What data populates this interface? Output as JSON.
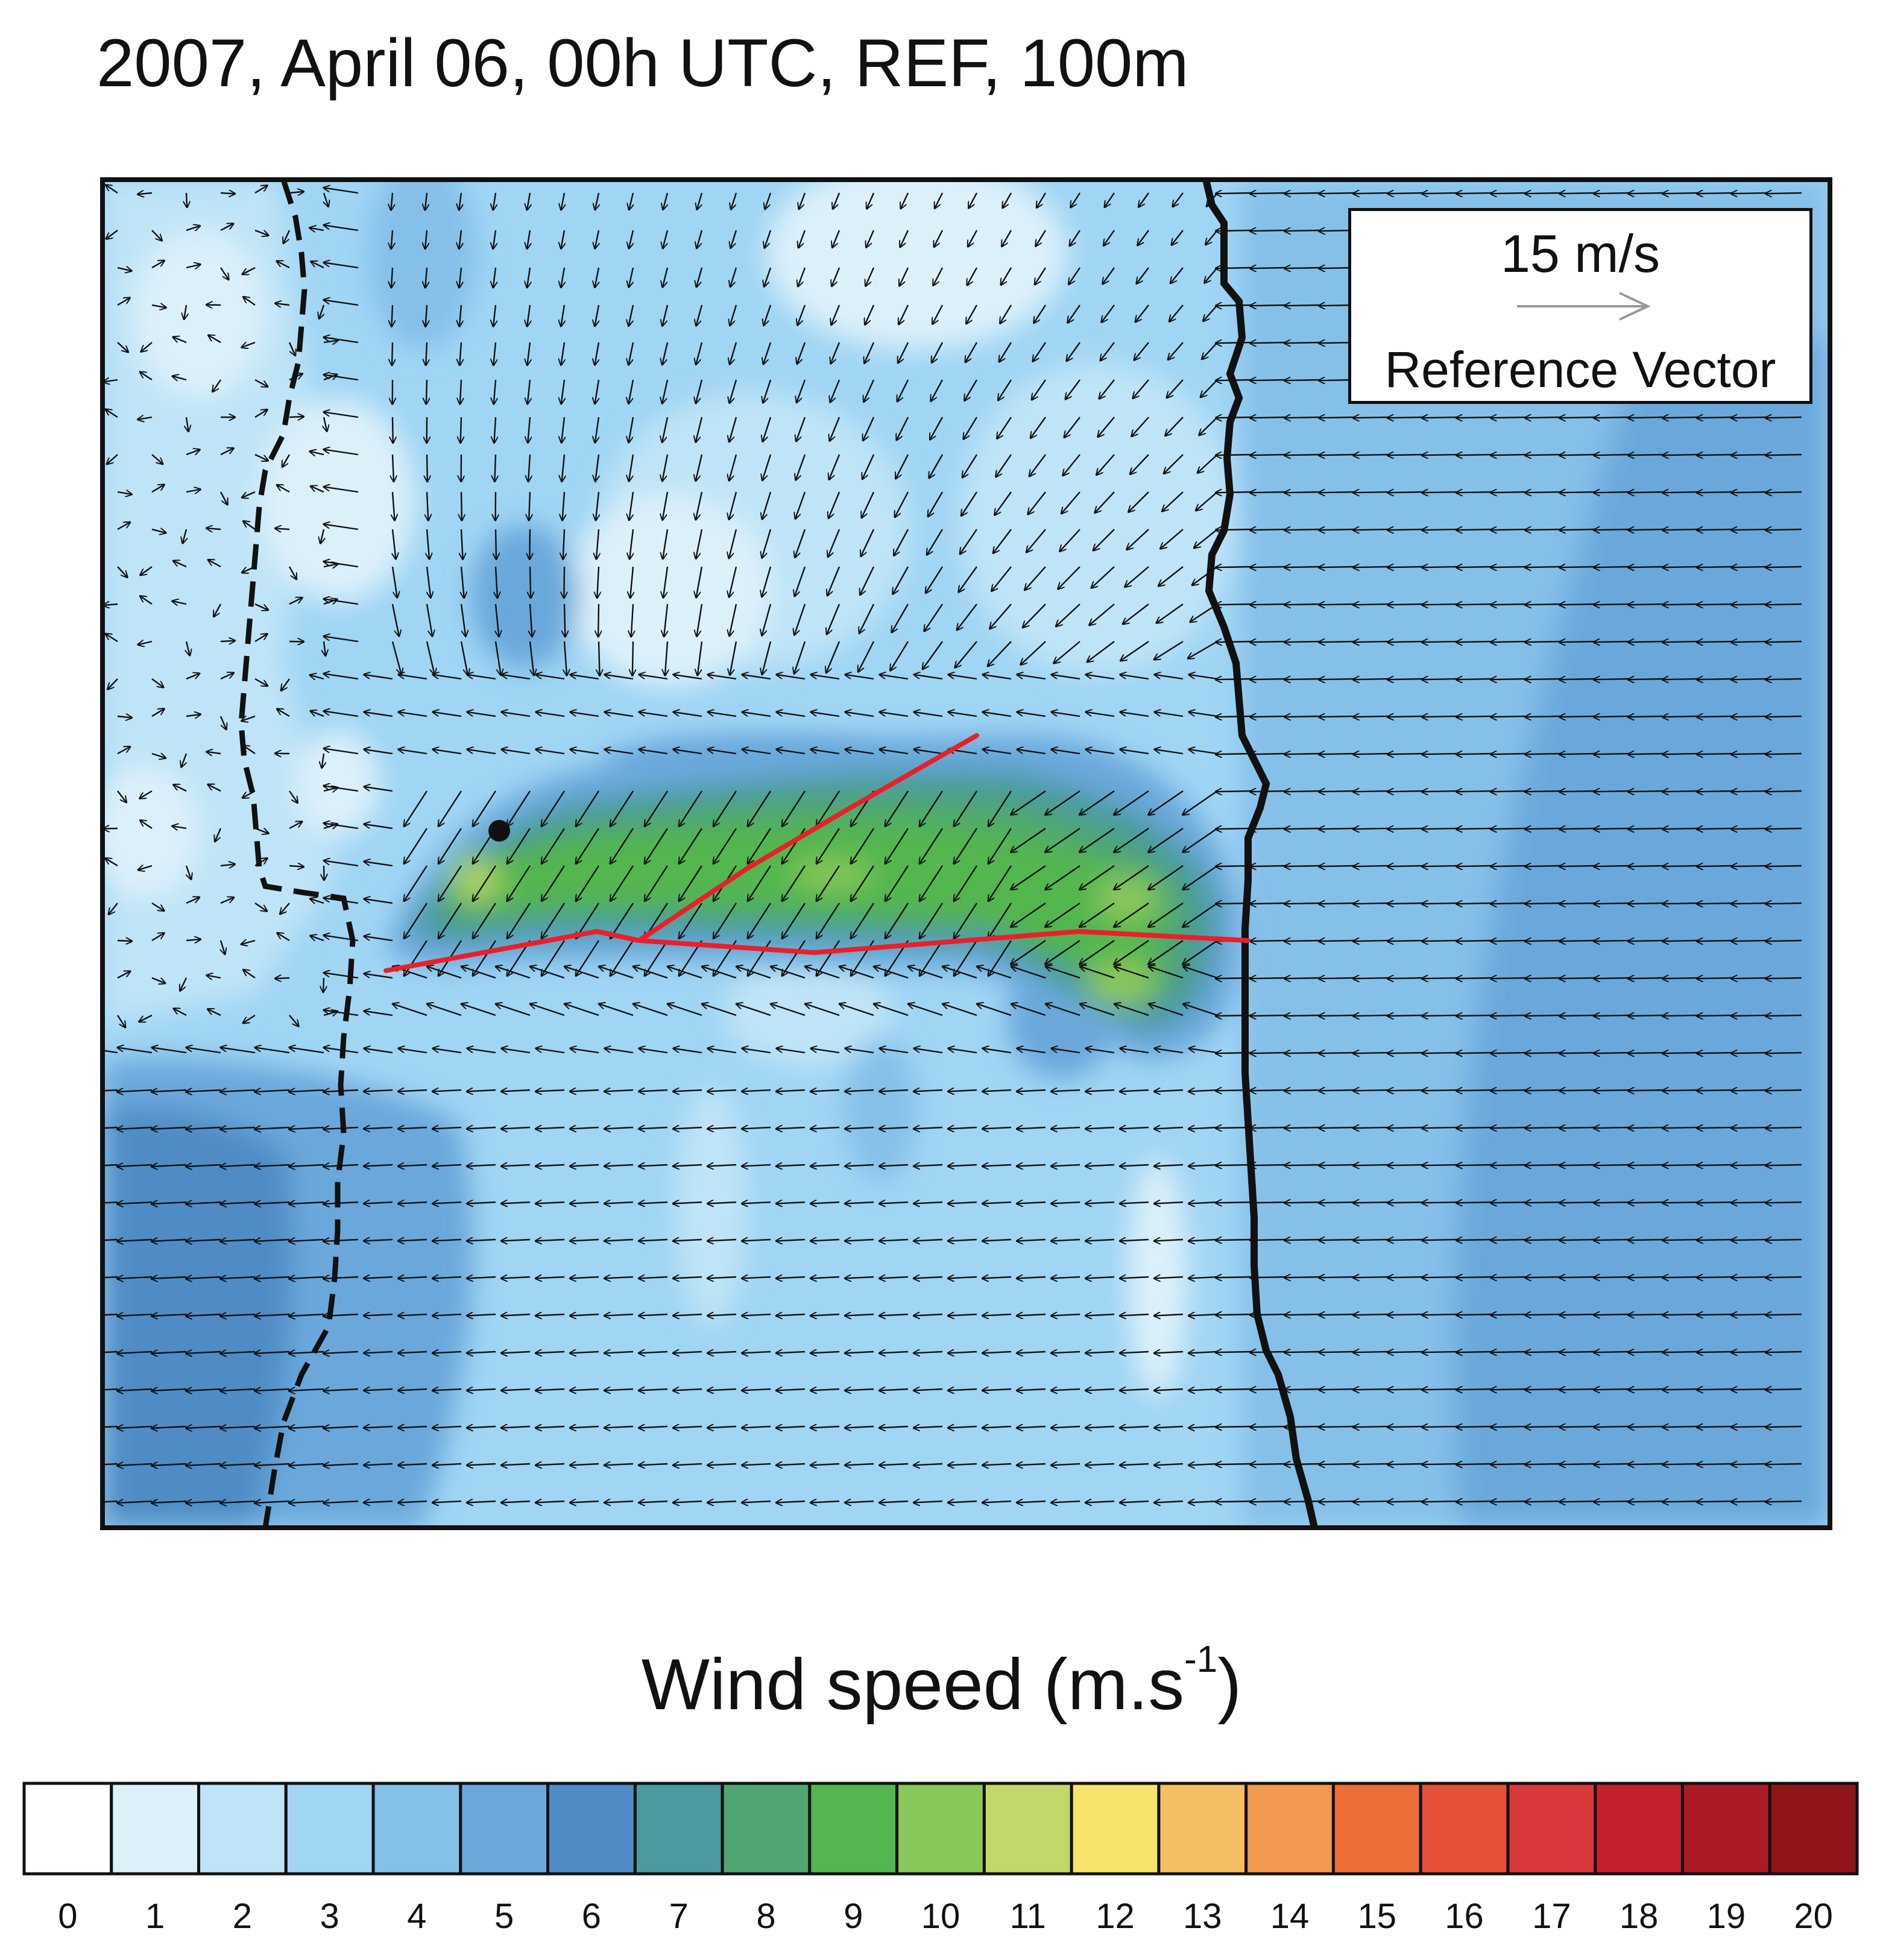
{
  "title": "2007, April 06, 00h UTC, REF, 100m",
  "reference_vector": {
    "speed_label": "15 m/s",
    "label": "Reference Vector"
  },
  "colorbar": {
    "title_main": "Wind speed (m.s",
    "title_sup": "-1",
    "title_close": ")",
    "levels": [
      "0",
      "1",
      "2",
      "3",
      "4",
      "5",
      "6",
      "7",
      "8",
      "9",
      "10",
      "11",
      "12",
      "13",
      "14",
      "15",
      "16",
      "17",
      "18",
      "19",
      "20"
    ],
    "colors": [
      "#ffffff",
      "#dcf0fa",
      "#bfe4f7",
      "#a0d5f4",
      "#85c0e9",
      "#6aa8dc",
      "#4f8cc6",
      "#4a9aa0",
      "#4fa673",
      "#53b64f",
      "#88c75a",
      "#c2d96a",
      "#f6e46d",
      "#f4be63",
      "#f29a4f",
      "#ee6e39",
      "#e65237",
      "#d9393a",
      "#c5202e",
      "#ac1a26",
      "#8f1519"
    ]
  },
  "colors": {
    "frame": "#111111",
    "rift_lines": "#e8202a",
    "vectors": "#111111"
  }
}
